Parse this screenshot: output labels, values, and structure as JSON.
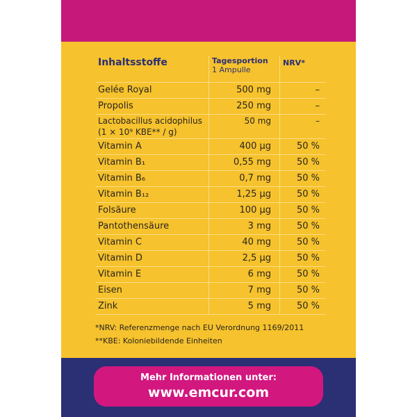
{
  "table": {
    "header": [
      "Inhaltsstoffe",
      [
        "Tagesportion",
        "1 Ampulle"
      ],
      "NRV*"
    ],
    "rows": [
      [
        "Gelée Royal",
        "500 mg",
        "–"
      ],
      [
        "Propolis",
        "250 mg",
        "–"
      ],
      [
        [
          "Lactobacillus acidophilus",
          "(1 × 10⁹ KBE** / g)"
        ],
        "50 mg",
        "–"
      ],
      [
        "Vitamin A",
        "400 µg",
        "50 %"
      ],
      [
        "Vitamin B₁",
        "0,55 mg",
        "50 %"
      ],
      [
        "Vitamin B₆",
        "0,7 mg",
        "50 %"
      ],
      [
        "Vitamin B₁₂",
        "1,25 µg",
        "50 %"
      ],
      [
        "Folsäure",
        "100 µg",
        "50 %"
      ],
      [
        "Pantothensäure",
        "3 mg",
        "50 %"
      ],
      [
        "Vitamin C",
        "40 mg",
        "50 %"
      ],
      [
        "Vitamin D",
        "2,5 µg",
        "50 %"
      ],
      [
        "Vitamin E",
        "6 mg",
        "50 %"
      ],
      [
        "Eisen",
        "7 mg",
        "50 %"
      ],
      [
        "Zink",
        "5 mg",
        "50 %"
      ]
    ]
  },
  "footnotes": [
    "*NRV: Referenzmenge nach EU Verordnung 1169/2011",
    "**KBE: Koloniebildende Einheiten"
  ],
  "button": {
    "line1": "Mehr Informationen unter:",
    "line2": "www.emcur.com"
  }
}
